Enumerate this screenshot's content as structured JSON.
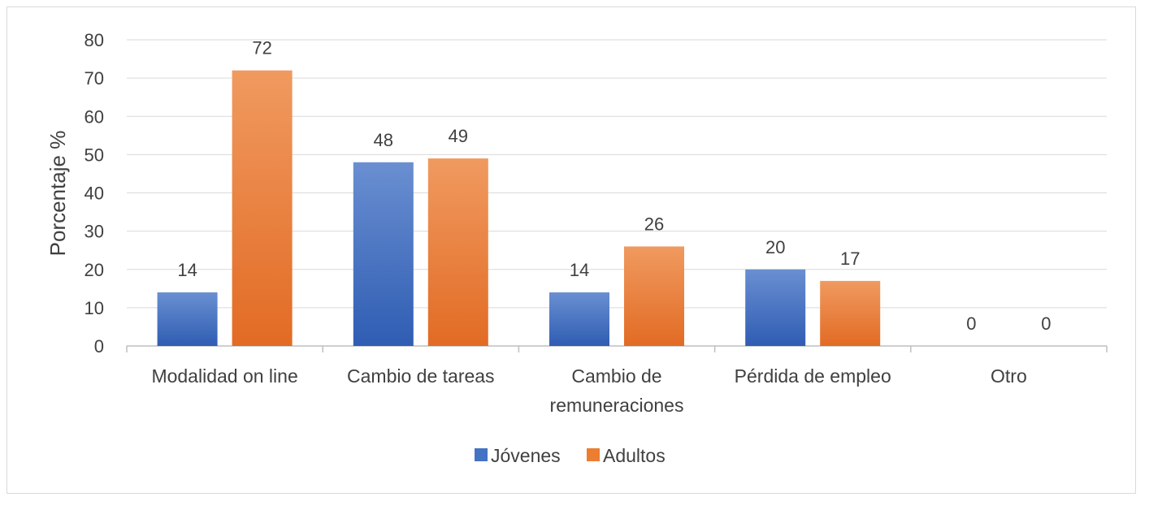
{
  "chart_data": {
    "type": "bar",
    "ylabel": "Porcentaje %",
    "ylim": [
      0,
      80
    ],
    "yticks": [
      0,
      10,
      20,
      30,
      40,
      50,
      60,
      70,
      80
    ],
    "grid": true,
    "legend_position": "bottom",
    "categories": [
      [
        "Modalidad on line"
      ],
      [
        "Cambio de tareas"
      ],
      [
        "Cambio de",
        "remuneraciones"
      ],
      [
        "Pérdida de empleo"
      ],
      [
        "Otro"
      ]
    ],
    "series": [
      {
        "name": "Jóvenes",
        "color": "#4472c4",
        "values": [
          14,
          48,
          14,
          20,
          0
        ]
      },
      {
        "name": "Adultos",
        "color": "#ed7d31",
        "values": [
          72,
          49,
          26,
          17,
          0
        ]
      }
    ]
  }
}
